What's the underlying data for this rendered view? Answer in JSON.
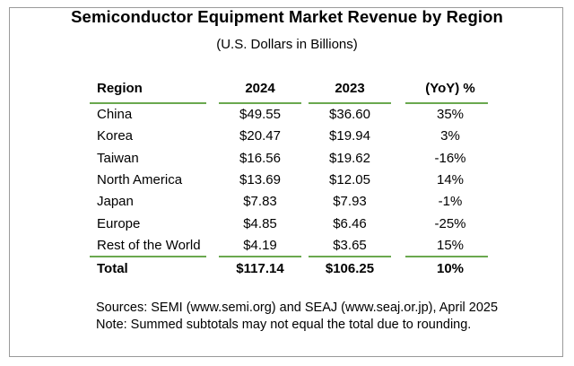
{
  "chart_data": {
    "type": "table",
    "title": "Semiconductor Equipment Market Revenue by Region",
    "subtitle": "(U.S. Dollars in Billions)",
    "columns": [
      "Region",
      "2024",
      "2023",
      "(YoY) %"
    ],
    "rows": [
      {
        "region": "China",
        "y2024": "$49.55",
        "y2023": "$36.60",
        "yoy": "35%"
      },
      {
        "region": "Korea",
        "y2024": "$20.47",
        "y2023": "$19.94",
        "yoy": "3%"
      },
      {
        "region": "Taiwan",
        "y2024": "$16.56",
        "y2023": "$19.62",
        "yoy": "-16%"
      },
      {
        "region": "North America",
        "y2024": "$13.69",
        "y2023": "$12.05",
        "yoy": "14%"
      },
      {
        "region": "Japan",
        "y2024": "$7.83",
        "y2023": "$7.93",
        "yoy": "-1%"
      },
      {
        "region": "Europe",
        "y2024": "$4.85",
        "y2023": "$6.46",
        "yoy": "-25%"
      },
      {
        "region": "Rest of the World",
        "y2024": "$4.19",
        "y2023": "$3.65",
        "yoy": "15%"
      }
    ],
    "total": {
      "region": "Total",
      "y2024": "$117.14",
      "y2023": "$106.25",
      "yoy": "10%"
    },
    "notes": [
      "Sources: SEMI (www.semi.org) and SEAJ (www.seaj.or.jp), April 2025",
      "Note: Summed subtotals may not equal the total due to rounding."
    ],
    "rule_color": "#6aa84f",
    "border_color": "#9a9a9a"
  }
}
